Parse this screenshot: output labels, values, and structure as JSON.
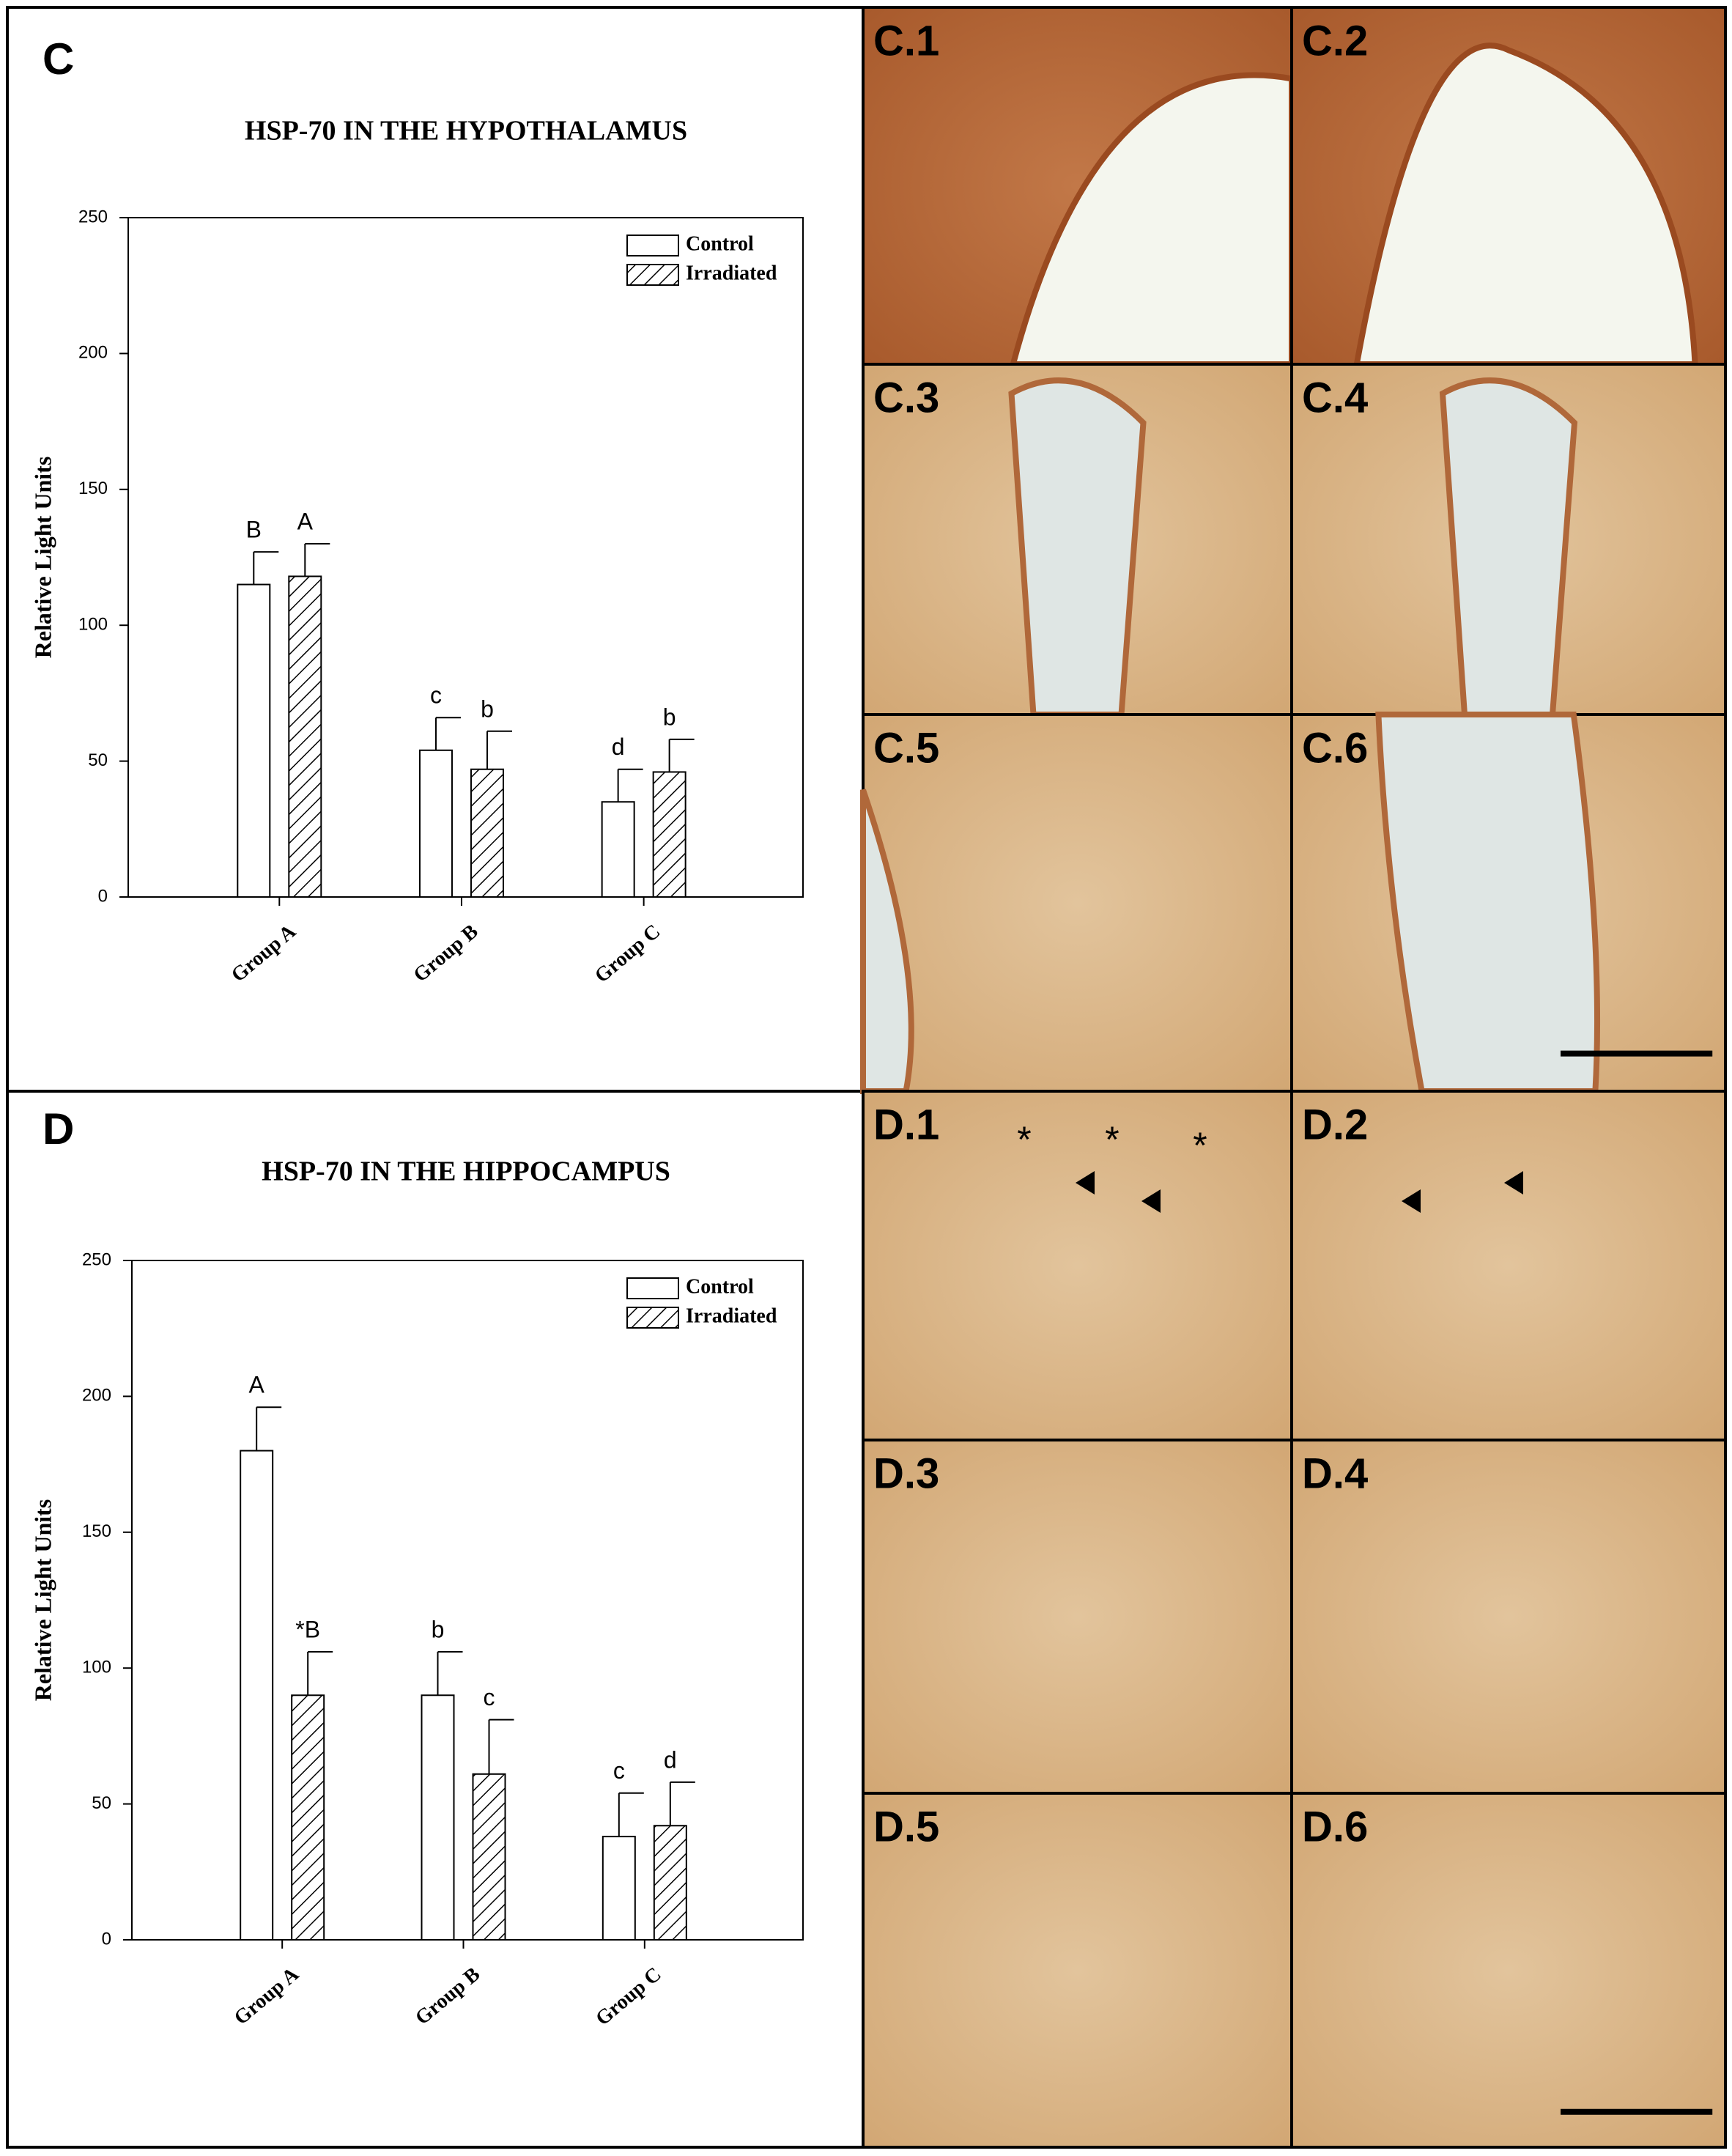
{
  "panels": [
    "C",
    "D"
  ],
  "chart_data": [
    {
      "type": "bar",
      "title": "HSP-70 IN THE HYPOTHALAMUS",
      "y_label": "Relative Light Units",
      "categories": [
        "Group A",
        "Group B",
        "Group C"
      ],
      "series": [
        {
          "name": "Control",
          "color": "#ffffff",
          "hatch": false,
          "values": [
            115,
            54,
            35
          ],
          "errors": [
            12,
            12,
            12
          ],
          "letters": [
            "B",
            "c",
            "d"
          ]
        },
        {
          "name": "Irradiated",
          "color": "#ffffff",
          "hatch": true,
          "values": [
            118,
            47,
            46
          ],
          "errors": [
            12,
            14,
            12
          ],
          "letters": [
            "A",
            "b",
            "b"
          ]
        }
      ],
      "ylim": [
        0,
        250
      ],
      "yticks": [
        0,
        50,
        100,
        150,
        200,
        250
      ],
      "legend": "top-right",
      "grid": false
    },
    {
      "type": "bar",
      "title": "HSP-70 IN THE HIPPOCAMPUS",
      "y_label": "Relative Light Units",
      "categories": [
        "Group A",
        "Group B",
        "Group C"
      ],
      "series": [
        {
          "name": "Control",
          "color": "#ffffff",
          "hatch": false,
          "values": [
            180,
            90,
            38
          ],
          "errors": [
            16,
            16,
            16
          ],
          "letters": [
            "A",
            "b",
            "c"
          ]
        },
        {
          "name": "Irradiated",
          "color": "#ffffff",
          "hatch": true,
          "values": [
            90,
            61,
            42
          ],
          "errors": [
            16,
            20,
            16
          ],
          "letters": [
            "*B",
            "c",
            "d"
          ]
        }
      ],
      "ylim": [
        0,
        250
      ],
      "yticks": [
        0,
        50,
        100,
        150,
        200,
        250
      ],
      "legend": "top-right",
      "grid": false
    }
  ],
  "micrographs": [
    {
      "label": "C.1"
    },
    {
      "label": "C.2"
    },
    {
      "label": "C.3"
    },
    {
      "label": "C.4"
    },
    {
      "label": "C.5"
    },
    {
      "label": "C.6"
    },
    {
      "label": "D.1",
      "marks": [
        "*",
        "*",
        "*"
      ]
    },
    {
      "label": "D.2"
    },
    {
      "label": "D.3"
    },
    {
      "label": "D.4"
    },
    {
      "label": "D.5"
    },
    {
      "label": "D.6"
    }
  ]
}
